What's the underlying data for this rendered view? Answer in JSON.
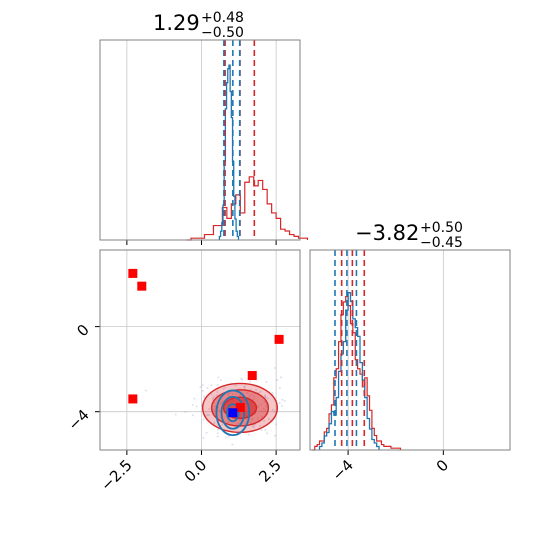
{
  "chart_data": {
    "type": "corner",
    "colors": {
      "series_a": "#1f77b4",
      "series_b": "#d62728",
      "truth_marker": "#ff0000",
      "blue_marker": "#0000ff"
    },
    "param1": {
      "title_value": "1.29",
      "title_plus": "+0.48",
      "title_minus": "−0.50",
      "xlim": [
        -3.4,
        3.3
      ],
      "ticks": [
        -2.5,
        0.0,
        2.5
      ],
      "tick_labels": [
        "−2.5",
        "0.0",
        "2.5"
      ],
      "quantiles_series_a": [
        0.75,
        1.05,
        1.28
      ],
      "quantiles_series_b": [
        0.79,
        1.29,
        1.77
      ],
      "series_a_hist": {
        "edges_start": 0.6,
        "edges_step": 0.04,
        "heights": [
          0.02,
          0.05,
          0.1,
          0.2,
          0.45,
          0.75,
          0.9,
          0.98,
          1.0,
          0.85,
          0.7,
          0.45,
          0.25,
          0.12,
          0.05,
          0.02
        ]
      },
      "series_b_hist": {
        "edges_start": -0.5,
        "edges_step": 0.15,
        "heights": [
          0.0,
          0.01,
          0.01,
          0.01,
          0.03,
          0.03,
          0.08,
          0.08,
          0.18,
          0.12,
          0.2,
          0.25,
          0.15,
          0.32,
          0.35,
          0.3,
          0.33,
          0.28,
          0.2,
          0.15,
          0.12,
          0.06,
          0.05,
          0.03,
          0.02,
          0.01,
          0.01
        ]
      }
    },
    "param2": {
      "title_value": "−3.82",
      "title_plus": "+0.50",
      "title_minus": "−0.45",
      "xlim": [
        -5.6,
        2.8
      ],
      "ticks": [
        -4,
        0
      ],
      "tick_labels": [
        "−4",
        "0"
      ],
      "quantiles_series_a": [
        -4.55,
        -4.05,
        -3.65
      ],
      "quantiles_series_b": [
        -4.27,
        -3.82,
        -3.32
      ],
      "series_a_hist": {
        "edges_start": -5.2,
        "edges_step": 0.1,
        "heights": [
          0.02,
          0.04,
          0.08,
          0.1,
          0.15,
          0.22,
          0.2,
          0.3,
          0.45,
          0.55,
          0.62,
          0.8,
          0.9,
          0.85,
          0.75,
          0.7,
          0.65,
          0.5,
          0.4,
          0.3,
          0.18,
          0.12,
          0.06,
          0.04,
          0.02
        ]
      },
      "series_b_hist": {
        "edges_start": -5.5,
        "edges_step": 0.1,
        "heights": [
          0.0,
          0.02,
          0.03,
          0.05,
          0.05,
          0.1,
          0.12,
          0.2,
          0.25,
          0.4,
          0.45,
          0.6,
          0.75,
          0.82,
          0.85,
          0.8,
          0.7,
          0.65,
          0.5,
          0.45,
          0.42,
          0.35,
          0.4,
          0.3,
          0.22,
          0.12,
          0.08,
          0.05,
          0.05,
          0.03,
          0.02,
          0.02,
          0.02,
          0.01,
          0.01,
          0.01,
          0.01
        ]
      }
    },
    "joint": {
      "ylim": [
        -5.8,
        3.6
      ],
      "yticks": [
        0,
        -4
      ],
      "ytick_labels": [
        "0",
        "−4"
      ],
      "center_series_b": [
        1.29,
        -3.82
      ],
      "center_series_a": [
        1.05,
        -4.05
      ],
      "contours_series_b": [
        {
          "rx": 1.25,
          "ry": 1.15,
          "opacity": 0.35
        },
        {
          "rx": 0.95,
          "ry": 0.85,
          "opacity": 0.55
        },
        {
          "rx": 0.55,
          "ry": 0.5,
          "opacity": 0.8
        }
      ],
      "contours_series_a": [
        {
          "rx": 0.55,
          "ry": 1.05
        },
        {
          "rx": 0.38,
          "ry": 0.75
        },
        {
          "rx": 0.2,
          "ry": 0.4
        }
      ],
      "red_markers": [
        [
          -2.3,
          2.5
        ],
        [
          -2.0,
          1.9
        ],
        [
          2.6,
          -0.6
        ],
        [
          1.7,
          -2.3
        ],
        [
          -2.3,
          -3.4
        ],
        [
          1.3,
          -3.8
        ]
      ],
      "blue_markers": [
        [
          1.05,
          -4.05
        ]
      ]
    }
  }
}
